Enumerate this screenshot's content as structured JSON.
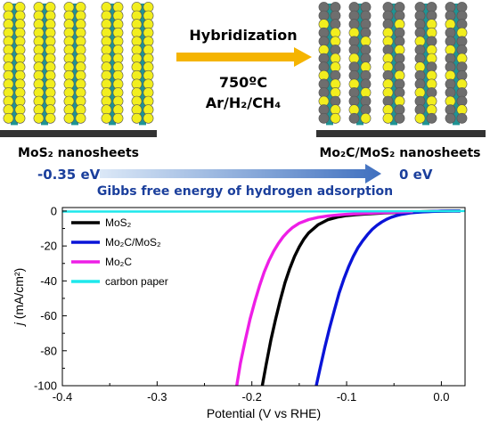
{
  "schematic": {
    "left_label": "MoS₂ nanosheets",
    "right_label": "Mo₂C/MoS₂ nanosheets",
    "process_title": "Hybridization",
    "temperature": "750ºC",
    "atmosphere": "Ar/H₂/CH₄",
    "energy_left": "-0.35 eV",
    "energy_right": "0 eV",
    "energy_caption": "Gibbs free energy of hydrogen adsorption",
    "colors": {
      "sulfur": "#f2ee1e",
      "molybdenum": "#1f9494",
      "carbon": "#6e6e6e",
      "process_arrow": "#f5b400",
      "energy_arrow": "#3f6fbf",
      "energy_text": "#1b3f9c"
    }
  },
  "chart_data": {
    "type": "line",
    "title": "",
    "xlabel": "Potential (V vs RHE)",
    "ylabel": "j (mA/cm²)",
    "xlim": [
      -0.4,
      0.025
    ],
    "ylim": [
      -100,
      2
    ],
    "xticks": [
      "-0.4",
      "-0.3",
      "-0.2",
      "-0.1",
      "0.0"
    ],
    "yticks": [
      "0",
      "-20",
      "-40",
      "-60",
      "-80",
      "-100"
    ],
    "legend_position": "top-left",
    "grid": false,
    "series": [
      {
        "name": "MoS₂",
        "color": "#000000",
        "x": [
          -0.189,
          -0.185,
          -0.18,
          -0.175,
          -0.17,
          -0.165,
          -0.16,
          -0.155,
          -0.15,
          -0.145,
          -0.14,
          -0.13,
          -0.12,
          -0.11,
          -0.1,
          -0.09,
          -0.08,
          -0.07,
          -0.06,
          -0.05,
          -0.04,
          -0.03,
          -0.02,
          -0.01,
          0.0,
          0.02
        ],
        "y": [
          -100,
          -88,
          -74,
          -62,
          -51,
          -41,
          -33,
          -26,
          -20.5,
          -16,
          -12.5,
          -7.8,
          -5.0,
          -3.5,
          -2.6,
          -2.1,
          -1.7,
          -1.4,
          -1.1,
          -0.9,
          -0.7,
          -0.5,
          -0.35,
          -0.2,
          -0.1,
          0
        ]
      },
      {
        "name": "Mo₂C/MoS₂",
        "color": "#0a14d8",
        "x": [
          -0.132,
          -0.128,
          -0.123,
          -0.118,
          -0.113,
          -0.108,
          -0.103,
          -0.098,
          -0.093,
          -0.088,
          -0.083,
          -0.078,
          -0.073,
          -0.068,
          -0.063,
          -0.058,
          -0.053,
          -0.048,
          -0.043,
          -0.038,
          -0.033,
          -0.028,
          -0.02,
          -0.01,
          0.0,
          0.02
        ],
        "y": [
          -100,
          -90,
          -78,
          -67,
          -57,
          -47,
          -39,
          -32,
          -26,
          -21,
          -17,
          -13.5,
          -10.5,
          -8.2,
          -6.3,
          -4.8,
          -3.6,
          -2.7,
          -2.0,
          -1.5,
          -1.1,
          -0.8,
          -0.5,
          -0.25,
          -0.1,
          0
        ]
      },
      {
        "name": "Mo₂C",
        "color": "#ee1ee6",
        "x": [
          -0.216,
          -0.212,
          -0.207,
          -0.202,
          -0.197,
          -0.192,
          -0.187,
          -0.182,
          -0.177,
          -0.172,
          -0.167,
          -0.162,
          -0.157,
          -0.15,
          -0.14,
          -0.13,
          -0.12,
          -0.11,
          -0.1,
          -0.09,
          -0.08,
          -0.07,
          -0.06,
          -0.05,
          -0.04,
          -0.03
        ],
        "y": [
          -100,
          -87,
          -74,
          -62,
          -52,
          -43,
          -35,
          -28.5,
          -23,
          -18.5,
          -14.8,
          -11.8,
          -9.4,
          -7.0,
          -4.9,
          -3.6,
          -2.8,
          -2.3,
          -1.9,
          -1.6,
          -1.3,
          -1.1,
          -0.9,
          -0.7,
          -0.5,
          -0.35
        ]
      },
      {
        "name": "carbon paper",
        "color": "#1ee8ec",
        "x": [
          -0.4,
          -0.3,
          -0.2,
          -0.1,
          0.0,
          0.025
        ],
        "y": [
          -0.3,
          -0.3,
          -0.25,
          -0.2,
          -0.1,
          0
        ]
      }
    ]
  }
}
